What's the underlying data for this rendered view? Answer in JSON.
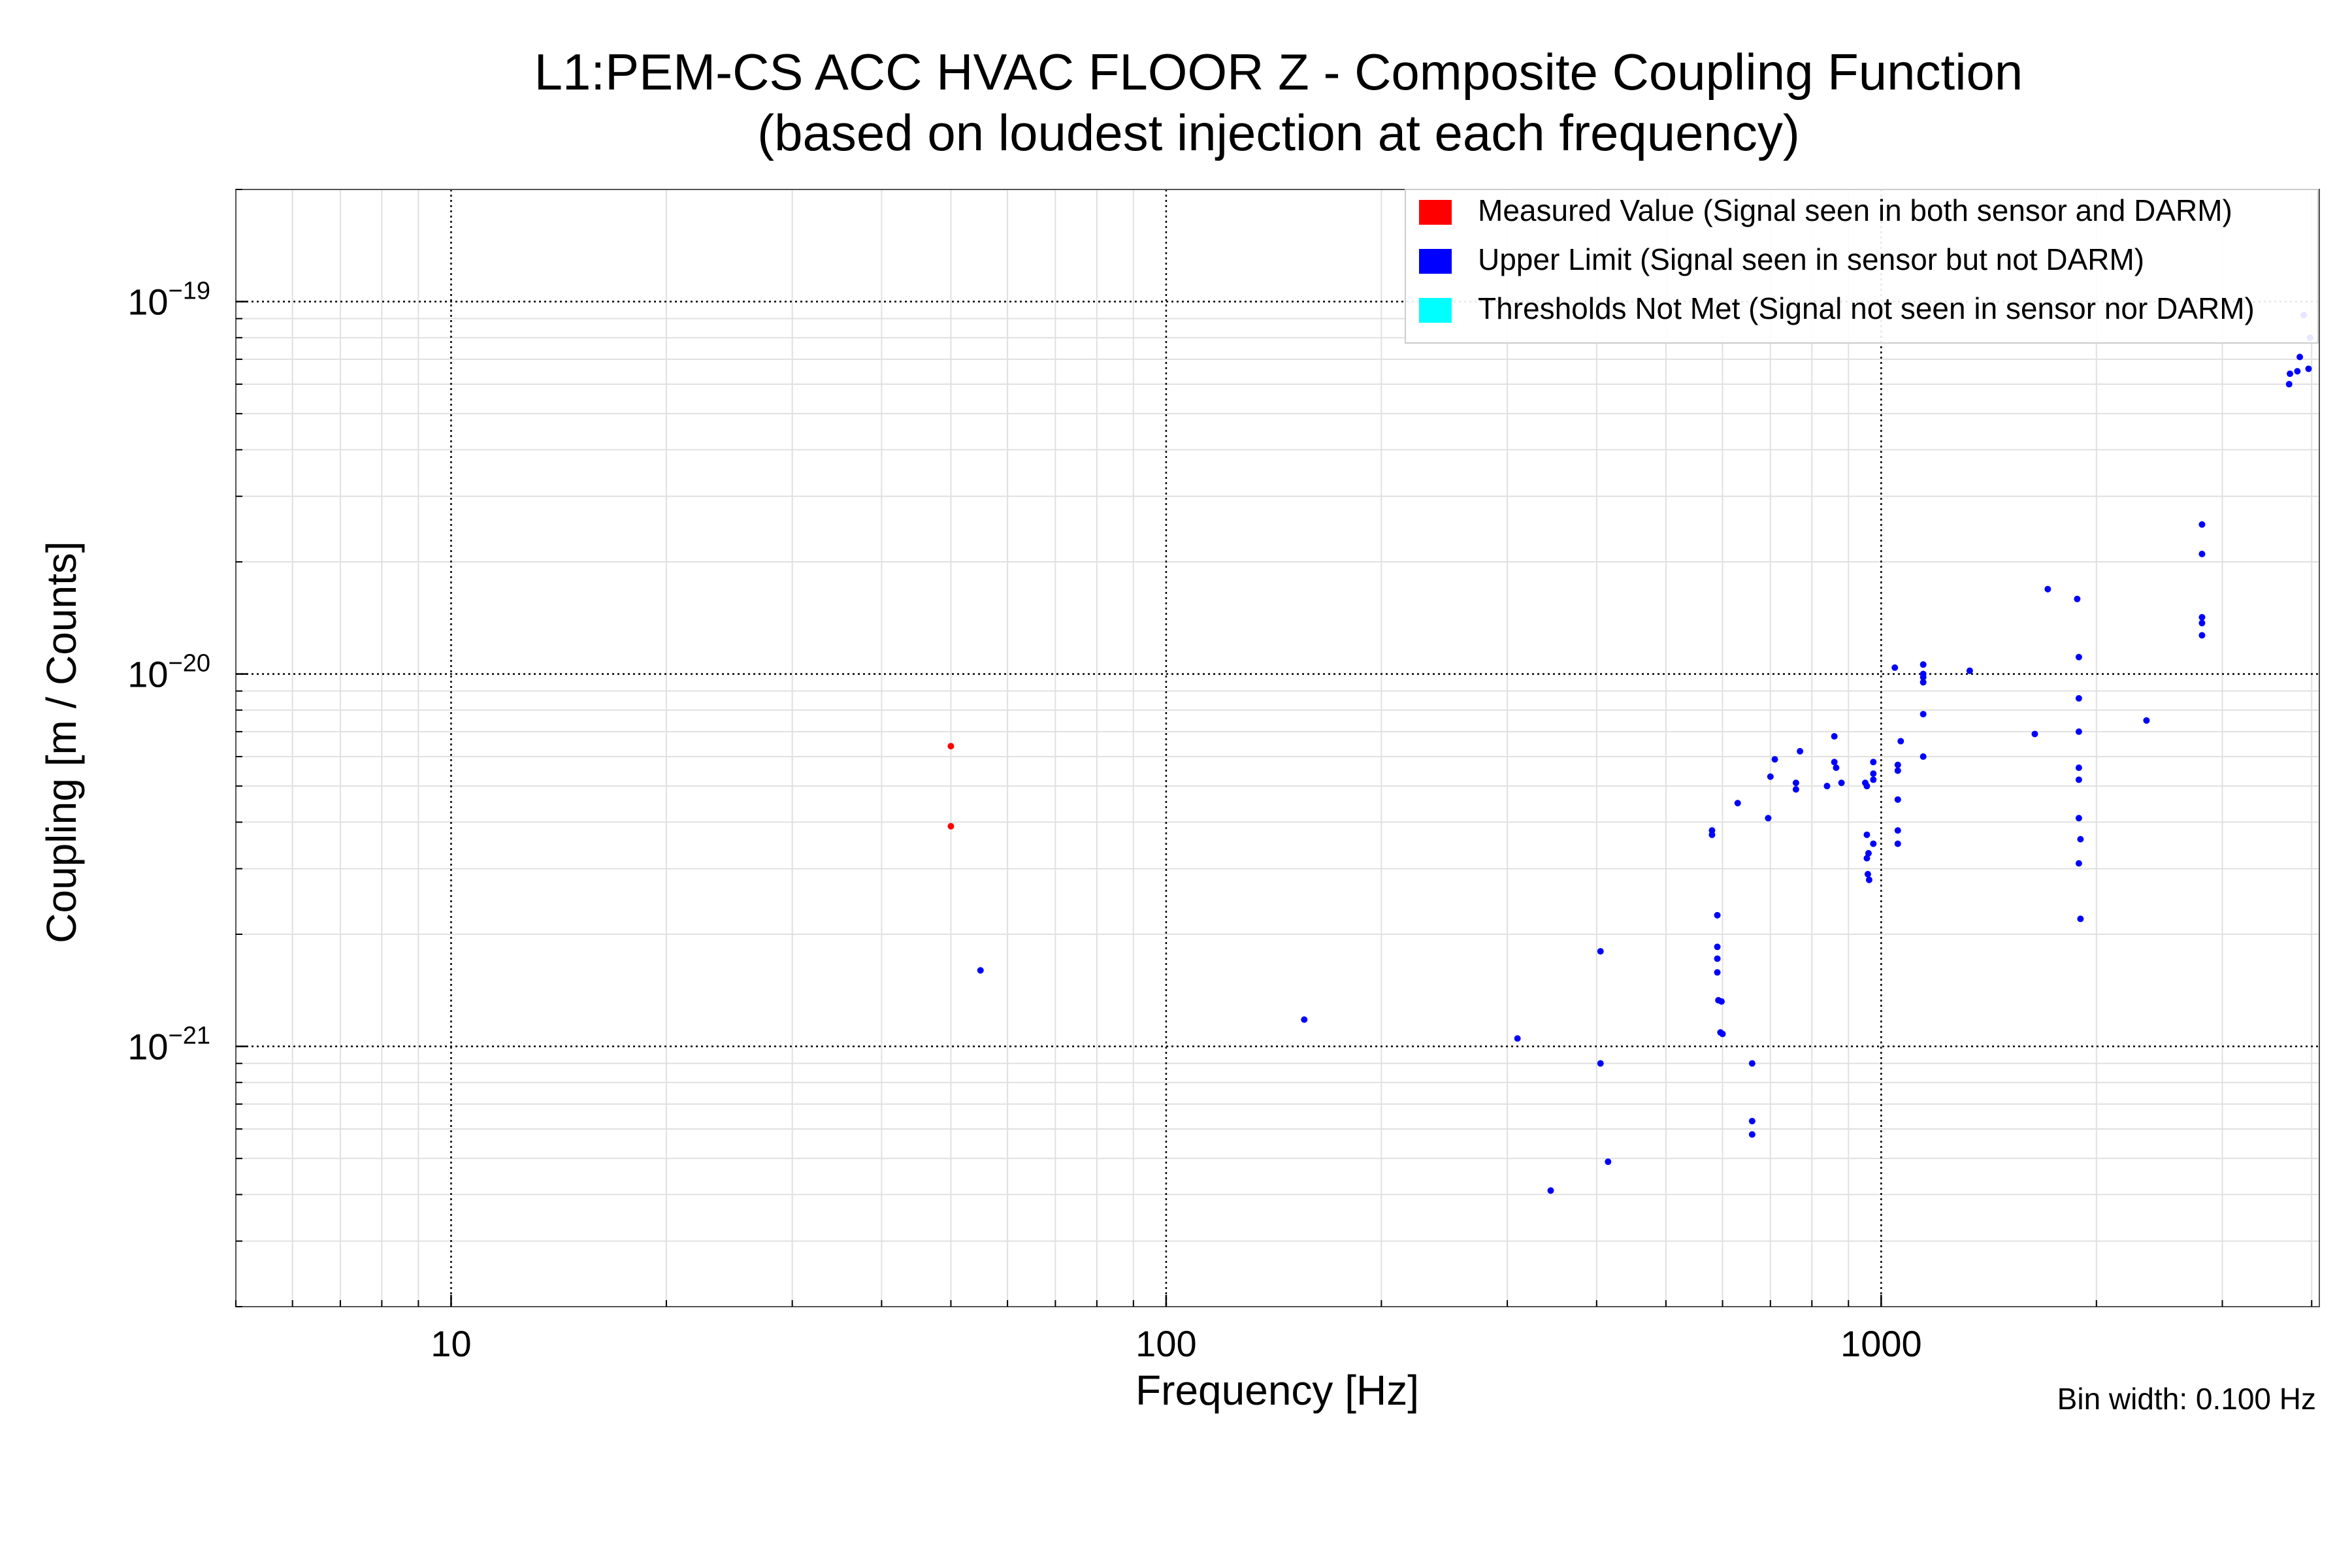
{
  "chart_data": {
    "type": "scatter",
    "title": "L1:PEM-CS ACC HVAC FLOOR Z - Composite Coupling Function",
    "subtitle": "(based on loudest injection at each frequency)",
    "xlabel": "Frequency [Hz]",
    "ylabel": "Coupling [m / Counts]",
    "xscale": "log",
    "yscale": "log",
    "xlim": [
      5,
      4100
    ],
    "ylim": [
      2e-22,
      2e-19
    ],
    "x_ticks": [
      {
        "value": 10,
        "label": "10"
      },
      {
        "value": 100,
        "label": "100"
      },
      {
        "value": 1000,
        "label": "1000"
      }
    ],
    "y_ticks": [
      {
        "value": 1e-21,
        "base": "10",
        "exp": "−21"
      },
      {
        "value": 1e-20,
        "base": "10",
        "exp": "−20"
      },
      {
        "value": 1e-19,
        "base": "10",
        "exp": "−19"
      }
    ],
    "grid": true,
    "legend_position": "top-right",
    "note": "Bin width: 0.100 Hz",
    "series": [
      {
        "name": "Measured Value (Signal seen in both sensor and DARM)",
        "color": "#ff0000",
        "points": [
          [
            50.0,
            6.4e-21
          ],
          [
            50.0,
            3.9e-21
          ]
        ]
      },
      {
        "name": "Upper Limit (Signal seen in sensor but not DARM)",
        "color": "#0000ff",
        "points": [
          [
            55.0,
            1.6e-21
          ],
          [
            156.0,
            1.18e-21
          ],
          [
            310.0,
            1.05e-21
          ],
          [
            345.0,
            4.1e-22
          ],
          [
            405.0,
            1.8e-21
          ],
          [
            405.0,
            9e-22
          ],
          [
            415.0,
            4.9e-22
          ],
          [
            580.0,
            3.8e-21
          ],
          [
            580.0,
            3.7e-21
          ],
          [
            590.0,
            2.25e-21
          ],
          [
            590.0,
            1.85e-21
          ],
          [
            590.0,
            1.72e-21
          ],
          [
            590.0,
            1.58e-21
          ],
          [
            592.0,
            1.33e-21
          ],
          [
            598.0,
            1.32e-21
          ],
          [
            596.0,
            1.09e-21
          ],
          [
            600.0,
            1.08e-21
          ],
          [
            630.0,
            4.5e-21
          ],
          [
            660.0,
            9e-22
          ],
          [
            660.0,
            6.3e-22
          ],
          [
            660.0,
            5.8e-22
          ],
          [
            695.0,
            4.1e-21
          ],
          [
            700.0,
            5.3e-21
          ],
          [
            710.0,
            5.9e-21
          ],
          [
            760.0,
            5.1e-21
          ],
          [
            760.0,
            4.9e-21
          ],
          [
            770.0,
            6.2e-21
          ],
          [
            840.0,
            5e-21
          ],
          [
            860.0,
            6.8e-21
          ],
          [
            860.0,
            5.8e-21
          ],
          [
            865.0,
            5.6e-21
          ],
          [
            880.0,
            5.1e-21
          ],
          [
            950.0,
            5.1e-21
          ],
          [
            955.0,
            5e-21
          ],
          [
            955.0,
            3.7e-21
          ],
          [
            955.0,
            3.2e-21
          ],
          [
            958.0,
            2.9e-21
          ],
          [
            960.0,
            3.3e-21
          ],
          [
            962.0,
            2.8e-21
          ],
          [
            975.0,
            5.8e-21
          ],
          [
            975.0,
            5.4e-21
          ],
          [
            975.0,
            3.5e-21
          ],
          [
            975.0,
            5.2e-21
          ],
          [
            1045.0,
            1.04e-20
          ],
          [
            1055.0,
            5.7e-21
          ],
          [
            1055.0,
            5.5e-21
          ],
          [
            1055.0,
            4.6e-21
          ],
          [
            1055.0,
            3.8e-21
          ],
          [
            1055.0,
            3.5e-21
          ],
          [
            1065.0,
            6.6e-21
          ],
          [
            1145.0,
            1.06e-20
          ],
          [
            1145.0,
            1e-20
          ],
          [
            1145.0,
            9.8e-21
          ],
          [
            1145.0,
            9.5e-21
          ],
          [
            1145.0,
            7.8e-21
          ],
          [
            1145.0,
            6e-21
          ],
          [
            1330.0,
            1.02e-20
          ],
          [
            1640.0,
            6.9e-21
          ],
          [
            1710.0,
            1.69e-20
          ],
          [
            1880.0,
            1.59e-20
          ],
          [
            1890.0,
            1.11e-20
          ],
          [
            1890.0,
            8.6e-21
          ],
          [
            1890.0,
            7e-21
          ],
          [
            1890.0,
            5.6e-21
          ],
          [
            1890.0,
            5.2e-21
          ],
          [
            1890.0,
            4.1e-21
          ],
          [
            1890.0,
            3.1e-21
          ],
          [
            1900.0,
            3.6e-21
          ],
          [
            1900.0,
            2.2e-21
          ],
          [
            2350.0,
            7.5e-21
          ],
          [
            2810.0,
            2.52e-20
          ],
          [
            2810.0,
            2.1e-20
          ],
          [
            2810.0,
            1.42e-20
          ],
          [
            2810.0,
            1.37e-20
          ],
          [
            2810.0,
            1.27e-20
          ],
          [
            3720.0,
            6e-20
          ],
          [
            3730.0,
            6.4e-20
          ],
          [
            3820.0,
            6.5e-20
          ],
          [
            3850.0,
            7.1e-20
          ],
          [
            3900.0,
            9.2e-20
          ],
          [
            3960.0,
            6.6e-20
          ],
          [
            3980.0,
            8e-20
          ]
        ]
      },
      {
        "name": "Thresholds Not Met (Signal not seen in sensor nor DARM)",
        "color": "#00ffff",
        "points": []
      }
    ]
  }
}
